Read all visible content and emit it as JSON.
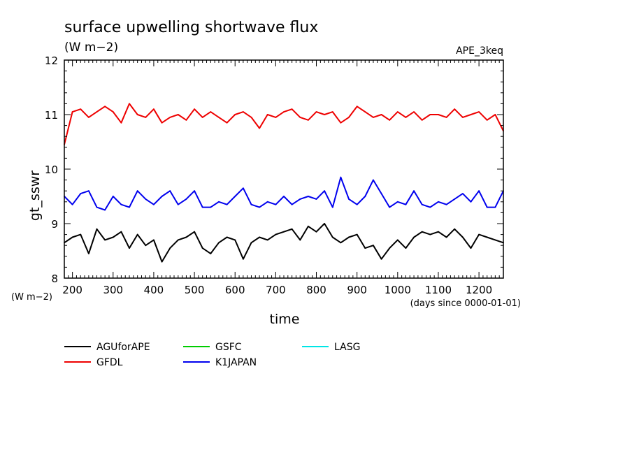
{
  "chart_data": {
    "type": "line",
    "title": "surface upwelling shortwave flux",
    "subtitle": "(W m−2)",
    "tag": "APE_3keq",
    "ylabel": "gt_sswr",
    "yunits": "(W m−2)",
    "xlabel": "time",
    "xunits": "(days since 0000-01-01)",
    "xlim": [
      180,
      1260
    ],
    "ylim": [
      8,
      12
    ],
    "xticks": [
      200,
      300,
      400,
      500,
      600,
      700,
      800,
      900,
      1000,
      1100,
      1200
    ],
    "yticks": [
      8,
      9,
      10,
      11,
      12
    ],
    "grid": false,
    "legend_position": "bottom-left, below plot",
    "legend": [
      {
        "name": "AGUforAPE",
        "color": "#000000"
      },
      {
        "name": "GSFC",
        "color": "#00cc00"
      },
      {
        "name": "LASG",
        "color": "#00e5e5"
      },
      {
        "name": "GFDL",
        "color": "#ee0000"
      },
      {
        "name": "K1JAPAN",
        "color": "#0000ee"
      }
    ],
    "x": [
      180,
      200,
      220,
      240,
      260,
      280,
      300,
      320,
      340,
      360,
      380,
      400,
      420,
      440,
      460,
      480,
      500,
      520,
      540,
      560,
      580,
      600,
      620,
      640,
      660,
      680,
      700,
      720,
      740,
      760,
      780,
      800,
      820,
      840,
      860,
      880,
      900,
      920,
      940,
      960,
      980,
      1000,
      1020,
      1040,
      1060,
      1080,
      1100,
      1120,
      1140,
      1160,
      1180,
      1200,
      1220,
      1240,
      1260
    ],
    "series": [
      {
        "name": "AGUforAPE",
        "color": "#000000",
        "values": [
          8.65,
          8.75,
          8.8,
          8.45,
          8.9,
          8.7,
          8.75,
          8.85,
          8.55,
          8.8,
          8.6,
          8.7,
          8.3,
          8.55,
          8.7,
          8.75,
          8.85,
          8.55,
          8.45,
          8.65,
          8.75,
          8.7,
          8.35,
          8.65,
          8.75,
          8.7,
          8.8,
          8.85,
          8.9,
          8.7,
          8.95,
          8.85,
          9.0,
          8.75,
          8.65,
          8.75,
          8.8,
          8.55,
          8.6,
          8.35,
          8.55,
          8.7,
          8.55,
          8.75,
          8.85,
          8.8,
          8.85,
          8.75,
          8.9,
          8.75,
          8.55,
          8.8,
          8.75,
          8.7,
          8.65
        ]
      },
      {
        "name": "GFDL",
        "color": "#ee0000",
        "values": [
          10.45,
          11.05,
          11.1,
          10.95,
          11.05,
          11.15,
          11.05,
          10.85,
          11.2,
          11.0,
          10.95,
          11.1,
          10.85,
          10.95,
          11.0,
          10.9,
          11.1,
          10.95,
          11.05,
          10.95,
          10.85,
          11.0,
          11.05,
          10.95,
          10.75,
          11.0,
          10.95,
          11.05,
          11.1,
          10.95,
          10.9,
          11.05,
          11.0,
          11.05,
          10.85,
          10.95,
          11.15,
          11.05,
          10.95,
          11.0,
          10.9,
          11.05,
          10.95,
          11.05,
          10.9,
          11.0,
          11.0,
          10.95,
          11.1,
          10.95,
          11.0,
          11.05,
          10.9,
          11.0,
          10.7
        ]
      },
      {
        "name": "K1JAPAN",
        "color": "#0000ee",
        "values": [
          9.5,
          9.35,
          9.55,
          9.6,
          9.3,
          9.25,
          9.5,
          9.35,
          9.3,
          9.6,
          9.45,
          9.35,
          9.5,
          9.6,
          9.35,
          9.45,
          9.6,
          9.3,
          9.3,
          9.4,
          9.35,
          9.5,
          9.65,
          9.35,
          9.3,
          9.4,
          9.35,
          9.5,
          9.35,
          9.45,
          9.5,
          9.45,
          9.6,
          9.3,
          9.85,
          9.45,
          9.35,
          9.5,
          9.8,
          9.55,
          9.3,
          9.4,
          9.35,
          9.6,
          9.35,
          9.3,
          9.4,
          9.35,
          9.45,
          9.55,
          9.4,
          9.6,
          9.3,
          9.3,
          9.6
        ]
      }
    ]
  }
}
